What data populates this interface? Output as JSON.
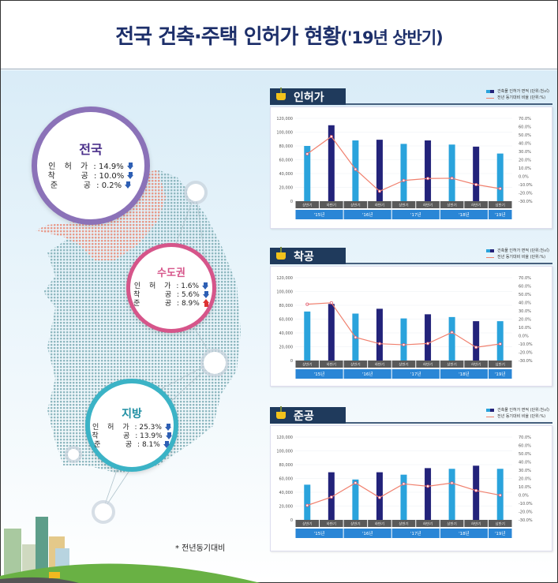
{
  "title": {
    "main": "전국 건축·주택 인허가 현황",
    "sub": "('19년 상반기)"
  },
  "note": "* 전년동기대비",
  "regions": [
    {
      "name": "전국",
      "color": "#8b72b8",
      "rows": [
        {
          "label": "인 허 가",
          "value": "14.9%",
          "dir": "down"
        },
        {
          "label": "착    공",
          "value": "10.0%",
          "dir": "down"
        },
        {
          "label": "준    공",
          "value": "0.2%",
          "dir": "down"
        }
      ]
    },
    {
      "name": "수도권",
      "color": "#d6558a",
      "rows": [
        {
          "label": "인 허 가",
          "value": "1.6%",
          "dir": "down"
        },
        {
          "label": "착    공",
          "value": "5.6%",
          "dir": "down"
        },
        {
          "label": "준    공",
          "value": "8.9%",
          "dir": "up"
        }
      ]
    },
    {
      "name": "지방",
      "color": "#3bb3c6",
      "rows": [
        {
          "label": "인 허 가",
          "value": "25.3%",
          "dir": "down"
        },
        {
          "label": "착    공",
          "value": "13.9%",
          "dir": "down"
        },
        {
          "label": "준    공",
          "value": "8.1%",
          "dir": "down"
        }
      ]
    }
  ],
  "colors": {
    "bar_first_half": "#2aa3dc",
    "bar_second_half": "#23237a",
    "line": "#f0806e",
    "year_band": "#2a86d6",
    "half_band": "#5a5a5a"
  },
  "legend": {
    "bar": "건축물 인허가 면적 (단위:천㎡)",
    "line": "전년 동기대비 비율 (단위:%)"
  },
  "chart_data": [
    {
      "type": "bar+line",
      "title": "인허가",
      "categories": [
        "상반기",
        "하반기",
        "상반기",
        "하반기",
        "상반기",
        "하반기",
        "상반기",
        "하반기",
        "상반기"
      ],
      "years": [
        {
          "label": "'15년",
          "span": 2
        },
        {
          "label": "'16년",
          "span": 2
        },
        {
          "label": "'17년",
          "span": 2
        },
        {
          "label": "'18년",
          "span": 2
        },
        {
          "label": "'19년",
          "span": 1
        }
      ],
      "ylim": [
        0,
        120000
      ],
      "yticks": [
        "0",
        "20,000",
        "40,000",
        "60,000",
        "80,000",
        "100,000",
        "120,000"
      ],
      "y2lim": [
        -30,
        70
      ],
      "y2ticks": [
        "-30.0%",
        "-20.0%",
        "-10.0%",
        "0.0%",
        "10.0%",
        "20.0%",
        "30.0%",
        "40.0%",
        "50.0%",
        "60.0%",
        "70.0%"
      ],
      "series": [
        {
          "name": "건축물 인허가 면적 (단위:천㎡)",
          "type": "bar",
          "values": [
            80000,
            110000,
            88000,
            89000,
            83000,
            88000,
            82000,
            79000,
            69000
          ]
        },
        {
          "name": "전년 동기대비 비율 (단위:%)",
          "type": "line",
          "axis": "right",
          "values": [
            27,
            48,
            8.5,
            -18,
            -5,
            -2.6,
            -2.3,
            -10,
            -14.9
          ]
        }
      ]
    },
    {
      "type": "bar+line",
      "title": "착공",
      "categories": [
        "상반기",
        "하반기",
        "상반기",
        "하반기",
        "상반기",
        "하반기",
        "상반기",
        "하반기",
        "상반기"
      ],
      "years": [
        {
          "label": "'15년",
          "span": 2
        },
        {
          "label": "'16년",
          "span": 2
        },
        {
          "label": "'17년",
          "span": 2
        },
        {
          "label": "'18년",
          "span": 2
        },
        {
          "label": "'19년",
          "span": 1
        }
      ],
      "ylim": [
        0,
        120000
      ],
      "yticks": [
        "0",
        "20,000",
        "40,000",
        "60,000",
        "80,000",
        "100,000",
        "120,000"
      ],
      "y2lim": [
        -30,
        70
      ],
      "y2ticks": [
        "-30.0%",
        "-20.0%",
        "-10.0%",
        "0.0%",
        "10.0%",
        "20.0%",
        "30.0%",
        "40.0%",
        "50.0%",
        "60.0%",
        "70.0%"
      ],
      "series": [
        {
          "name": "건축물 인허가 면적 (단위:천㎡)",
          "type": "bar",
          "values": [
            71000,
            82000,
            68000,
            75000,
            61000,
            67000,
            63000,
            57000,
            57000
          ]
        },
        {
          "name": "전년 동기대비 비율 (단위:%)",
          "type": "line",
          "axis": "right",
          "values": [
            38,
            39.7,
            -2,
            -9.7,
            -11,
            -9.4,
            4,
            -14,
            -10
          ]
        }
      ]
    },
    {
      "type": "bar+line",
      "title": "준공",
      "categories": [
        "상반기",
        "하반기",
        "상반기",
        "하반기",
        "상반기",
        "하반기",
        "상반기",
        "하반기",
        "상반기"
      ],
      "years": [
        {
          "label": "'15년",
          "span": 2
        },
        {
          "label": "'16년",
          "span": 2
        },
        {
          "label": "'17년",
          "span": 2
        },
        {
          "label": "'18년",
          "span": 2
        },
        {
          "label": "'19년",
          "span": 1
        }
      ],
      "ylim": [
        0,
        120000
      ],
      "yticks": [
        "0",
        "20,000",
        "40,000",
        "60,000",
        "80,000",
        "100,000",
        "120,000"
      ],
      "y2lim": [
        -30,
        70
      ],
      "y2ticks": [
        "-30.0%",
        "-20.0%",
        "-10.0%",
        "0.0%",
        "10.0%",
        "20.0%",
        "30.0%",
        "40.0%",
        "50.0%",
        "60.0%",
        "70.0%"
      ],
      "series": [
        {
          "name": "건축물 인허가 면적 (단위:천㎡)",
          "type": "bar",
          "values": [
            51000,
            69000,
            58500,
            69000,
            65500,
            75000,
            74000,
            78500,
            74000
          ]
        },
        {
          "name": "전년 동기대비 비율 (단위:%)",
          "type": "line",
          "axis": "right",
          "values": [
            -12.5,
            -2.5,
            14.7,
            -3,
            13.5,
            10.6,
            14.5,
            5.4,
            -0.2
          ]
        }
      ]
    }
  ]
}
